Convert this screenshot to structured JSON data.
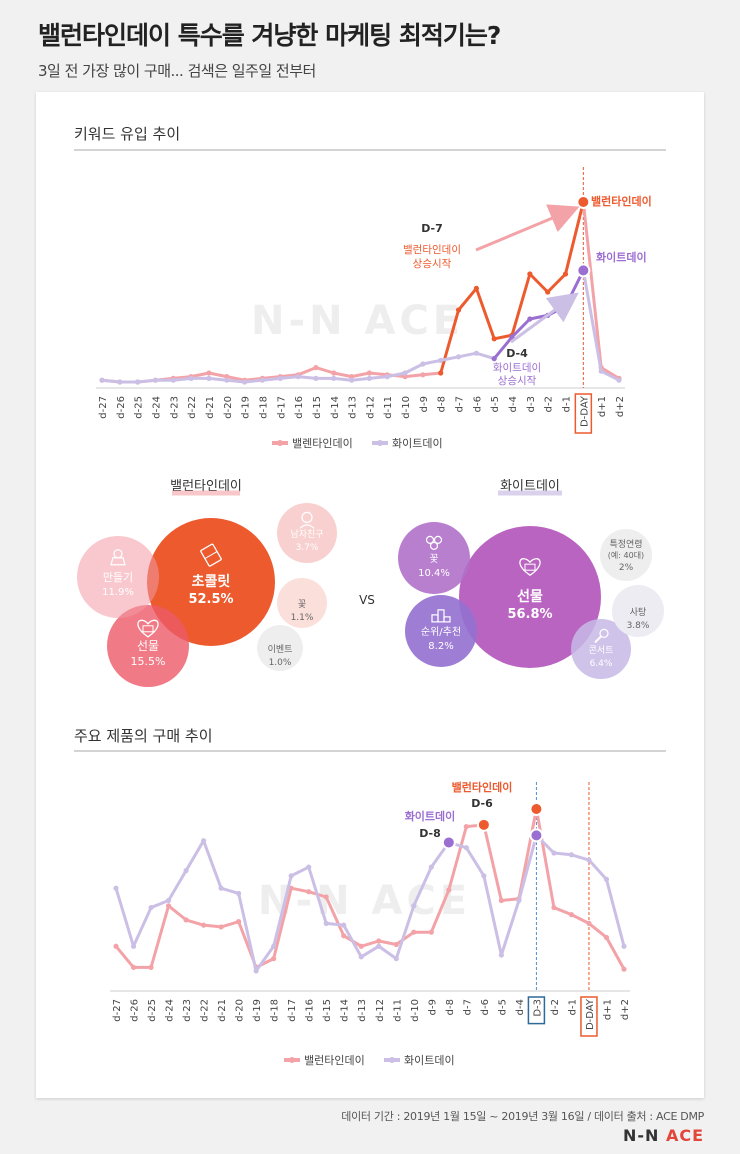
{
  "title": "밸런타인데이 특수를 겨냥한 마케팅 최적기는?",
  "subtitle": "3일 전 가장 많이 구매... 검색은 일주일 전부터",
  "footer": "데이터 기간 : 2019년 1월 15일 ~ 2019년 3월 16일 / 데이터 출처 : ACE DMP",
  "logo": {
    "text": "N-N ",
    "accent": "ACE"
  },
  "watermark": "N-N ACE",
  "colors": {
    "valentine": "#ec5a2e",
    "valentine_light": "#f3a3a8",
    "white_day": "#9b6ed1",
    "white_day_light": "#cbbfe6",
    "grid": "#cccccc"
  },
  "chart_data": [
    {
      "type": "line",
      "title": "키워드 유입 추이",
      "categories": [
        "d-27",
        "d-26",
        "d-25",
        "d-24",
        "d-23",
        "d-22",
        "d-21",
        "d-20",
        "d-19",
        "d-18",
        "d-17",
        "d-16",
        "d-15",
        "d-14",
        "d-13",
        "d-12",
        "d-11",
        "d-10",
        "d-9",
        "d-8",
        "d-7",
        "d-6",
        "d-5",
        "d-4",
        "d-3",
        "d-2",
        "d-1",
        "D-DAY",
        "d+1",
        "d+2"
      ],
      "ylim": [
        0,
        100
      ],
      "series": [
        {
          "name": "밸렌타인데이",
          "values": [
            1,
            0,
            0,
            1,
            2,
            3,
            5,
            3,
            1,
            2,
            3,
            4,
            8,
            5,
            3,
            5,
            4,
            3,
            4,
            5,
            40,
            52,
            24,
            26,
            60,
            50,
            60,
            100,
            8,
            2
          ]
        },
        {
          "name": "화이트데이",
          "values": [
            1,
            0,
            0,
            1,
            1,
            2,
            2,
            1,
            0,
            1,
            2,
            3,
            2,
            2,
            1,
            2,
            3,
            5,
            10,
            12,
            14,
            16,
            13,
            25,
            35,
            37,
            42,
            62,
            6,
            1
          ]
        }
      ],
      "legend": [
        "밸렌타인데이",
        "화이트데이"
      ],
      "highlight": "D-DAY",
      "annotations": {
        "valentine_end": "밸런타인데이",
        "white_end": "화이트데이",
        "d7_label": "D-7",
        "d7_line1": "밸런타인데이",
        "d7_line2": "상승시작",
        "d4_label": "D-4",
        "d4_line1": "화이트데이",
        "d4_line2": "상승시작"
      }
    },
    {
      "type": "bubble",
      "title": "밸런타인데이",
      "items": [
        {
          "label": "초콜릿",
          "value": 52.5,
          "display": "52.5%",
          "icon": "chocolate-icon"
        },
        {
          "label": "선물",
          "value": 15.5,
          "display": "15.5%",
          "icon": "gift-icon"
        },
        {
          "label": "만들기",
          "value": 11.9,
          "display": "11.9%",
          "icon": "baking-icon"
        },
        {
          "label": "남자친구",
          "value": 3.7,
          "display": "3.7%",
          "icon": "heart-person-icon"
        },
        {
          "label": "꽃",
          "value": 1.1,
          "display": "1.1%",
          "icon": ""
        },
        {
          "label": "이벤트",
          "value": 1.0,
          "display": "1.0%",
          "icon": ""
        }
      ]
    },
    {
      "type": "bubble",
      "title": "화이트데이",
      "items": [
        {
          "label": "선물",
          "value": 56.8,
          "display": "56.8%",
          "icon": "gift-heart-icon"
        },
        {
          "label": "꽃",
          "value": 10.4,
          "display": "10.4%",
          "icon": "flower-icon"
        },
        {
          "label": "순위/추천",
          "value": 8.2,
          "display": "8.2%",
          "icon": "podium-icon"
        },
        {
          "label": "콘서트",
          "value": 6.4,
          "display": "6.4%",
          "icon": "microphone-icon"
        },
        {
          "label": "사탕",
          "value": 3.8,
          "display": "3.8%",
          "icon": ""
        },
        {
          "label": "특정연령",
          "sub": "(예: 40대)",
          "value": 2,
          "display": "2%",
          "icon": ""
        }
      ]
    },
    {
      "type": "line",
      "title": "주요 제품의 구매 추이",
      "categories": [
        "d-27",
        "d-26",
        "d-25",
        "d-24",
        "d-23",
        "d-22",
        "d-21",
        "d-20",
        "d-19",
        "d-18",
        "d-17",
        "d-16",
        "d-15",
        "d-14",
        "d-13",
        "d-12",
        "d-11",
        "d-10",
        "d-9",
        "d-8",
        "d-7",
        "d-6",
        "d-5",
        "d-4",
        "D-3",
        "d-2",
        "d-1",
        "D-DAY",
        "d+1",
        "d+2"
      ],
      "ylim": [
        0,
        100
      ],
      "series": [
        {
          "name": "밸런타인데이",
          "values": [
            22,
            10,
            10,
            45,
            37,
            34,
            33,
            36,
            10,
            15,
            55,
            53,
            50,
            28,
            22,
            25,
            23,
            30,
            30,
            54,
            90,
            91,
            48,
            49,
            100,
            44,
            40,
            35,
            27,
            9
          ]
        },
        {
          "name": "화이트데이",
          "values": [
            55,
            22,
            44,
            48,
            65,
            82,
            55,
            52,
            8,
            22,
            62,
            67,
            35,
            34,
            16,
            22,
            15,
            45,
            67,
            81,
            78,
            62,
            17,
            48,
            85,
            75,
            74,
            71,
            60,
            22
          ]
        }
      ],
      "legend": [
        "밸런타인데이",
        "화이트데이"
      ],
      "highlight": [
        "D-3",
        "D-DAY"
      ],
      "annotations": {
        "valentine_label": "밸런타인데이",
        "valentine_day": "D-6",
        "white_label": "화이트데이",
        "white_day": "D-8"
      }
    }
  ],
  "vs": "VS"
}
